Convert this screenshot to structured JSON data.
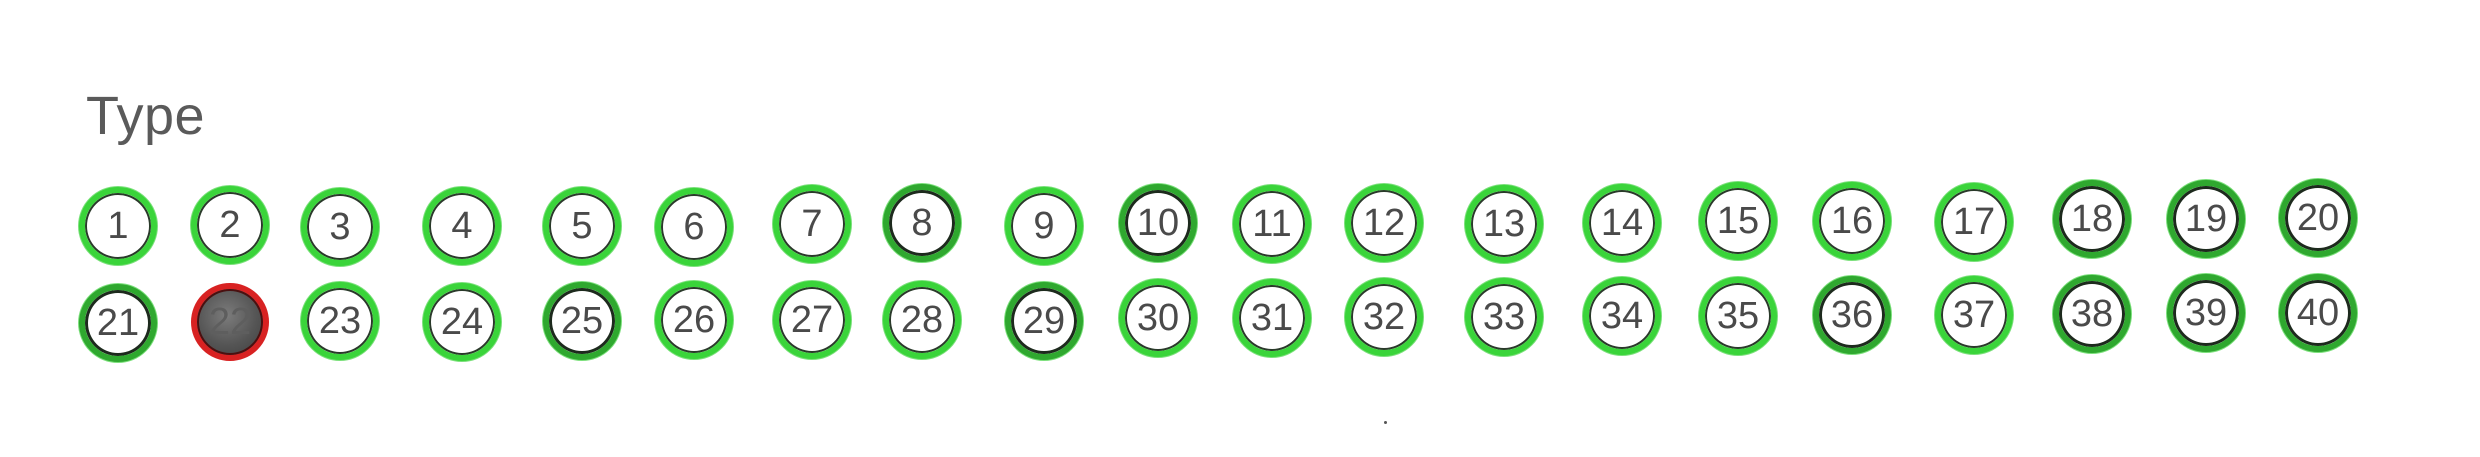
{
  "title": "Type",
  "colors": {
    "ring": "#3ad43a",
    "ring_dark": "#2fa82f",
    "selected_ring": "#d82222",
    "selected_fill": "#555555",
    "text": "#5a5a5a"
  },
  "bubbles": [
    {
      "label": "1",
      "selected": false
    },
    {
      "label": "2",
      "selected": false
    },
    {
      "label": "3",
      "selected": false
    },
    {
      "label": "4",
      "selected": false
    },
    {
      "label": "5",
      "selected": false
    },
    {
      "label": "6",
      "selected": false
    },
    {
      "label": "7",
      "selected": false
    },
    {
      "label": "8",
      "selected": false
    },
    {
      "label": "9",
      "selected": false
    },
    {
      "label": "10",
      "selected": false
    },
    {
      "label": "11",
      "selected": false
    },
    {
      "label": "12",
      "selected": false
    },
    {
      "label": "13",
      "selected": false
    },
    {
      "label": "14",
      "selected": false
    },
    {
      "label": "15",
      "selected": false
    },
    {
      "label": "16",
      "selected": false
    },
    {
      "label": "17",
      "selected": false
    },
    {
      "label": "18",
      "selected": false
    },
    {
      "label": "19",
      "selected": false
    },
    {
      "label": "20",
      "selected": false
    },
    {
      "label": "21",
      "selected": false
    },
    {
      "label": "22",
      "selected": true
    },
    {
      "label": "23",
      "selected": false
    },
    {
      "label": "24",
      "selected": false
    },
    {
      "label": "25",
      "selected": false
    },
    {
      "label": "26",
      "selected": false
    },
    {
      "label": "27",
      "selected": false
    },
    {
      "label": "28",
      "selected": false
    },
    {
      "label": "29",
      "selected": false
    },
    {
      "label": "30",
      "selected": false
    },
    {
      "label": "31",
      "selected": false
    },
    {
      "label": "32",
      "selected": false
    },
    {
      "label": "33",
      "selected": false
    },
    {
      "label": "34",
      "selected": false
    },
    {
      "label": "35",
      "selected": false
    },
    {
      "label": "36",
      "selected": false
    },
    {
      "label": "37",
      "selected": false
    },
    {
      "label": "38",
      "selected": false
    },
    {
      "label": "39",
      "selected": false
    },
    {
      "label": "40",
      "selected": false
    }
  ]
}
